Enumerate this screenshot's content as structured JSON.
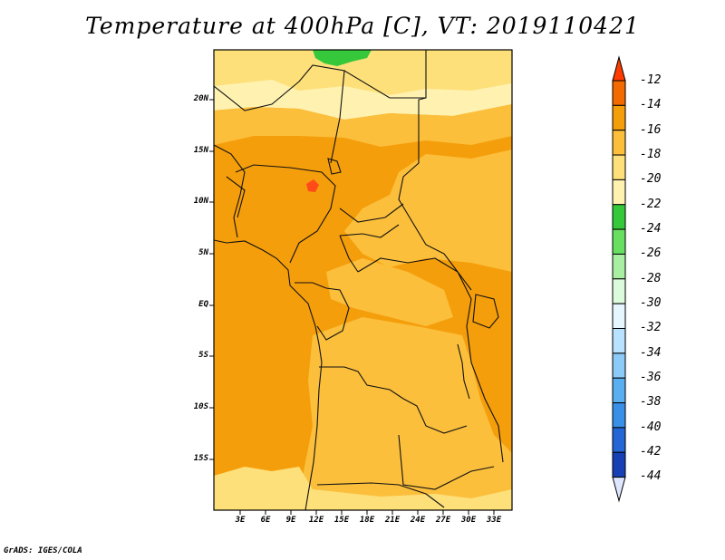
{
  "title": "Temperature at 400hPa [C], VT: 2019110421",
  "credit": "GrADS: IGES/COLA",
  "lat_labels": [
    "20N",
    "15N",
    "10N",
    "5N",
    "EQ",
    "5S",
    "10S",
    "15S"
  ],
  "lon_labels": [
    "3E",
    "6E",
    "9E",
    "12E",
    "15E",
    "18E",
    "21E",
    "24E",
    "27E",
    "30E",
    "33E"
  ],
  "colorbar": {
    "labels": [
      "-12",
      "-14",
      "-16",
      "-18",
      "-20",
      "-22",
      "-24",
      "-26",
      "-28",
      "-30",
      "-32",
      "-34",
      "-36",
      "-38",
      "-40",
      "-42",
      "-44"
    ],
    "colors": [
      "#ff3b00",
      "#f26a00",
      "#f59e0b",
      "#fbbf3c",
      "#fde07a",
      "#fff2b0",
      "#35c83a",
      "#69df62",
      "#a8efa2",
      "#dcfadc",
      "#e6f6ff",
      "#b8e2ff",
      "#8ccaf8",
      "#5aaff0",
      "#3a8fe6",
      "#2566d6",
      "#1740b4",
      "#0c1a72"
    ]
  },
  "map_fill": {
    "orange": "#f59e0b",
    "amber": "#fbbf3c",
    "yellow": "#fde07a",
    "cream": "#fff2b0",
    "green": "#35c83a",
    "hot": "#ff4a1a"
  }
}
